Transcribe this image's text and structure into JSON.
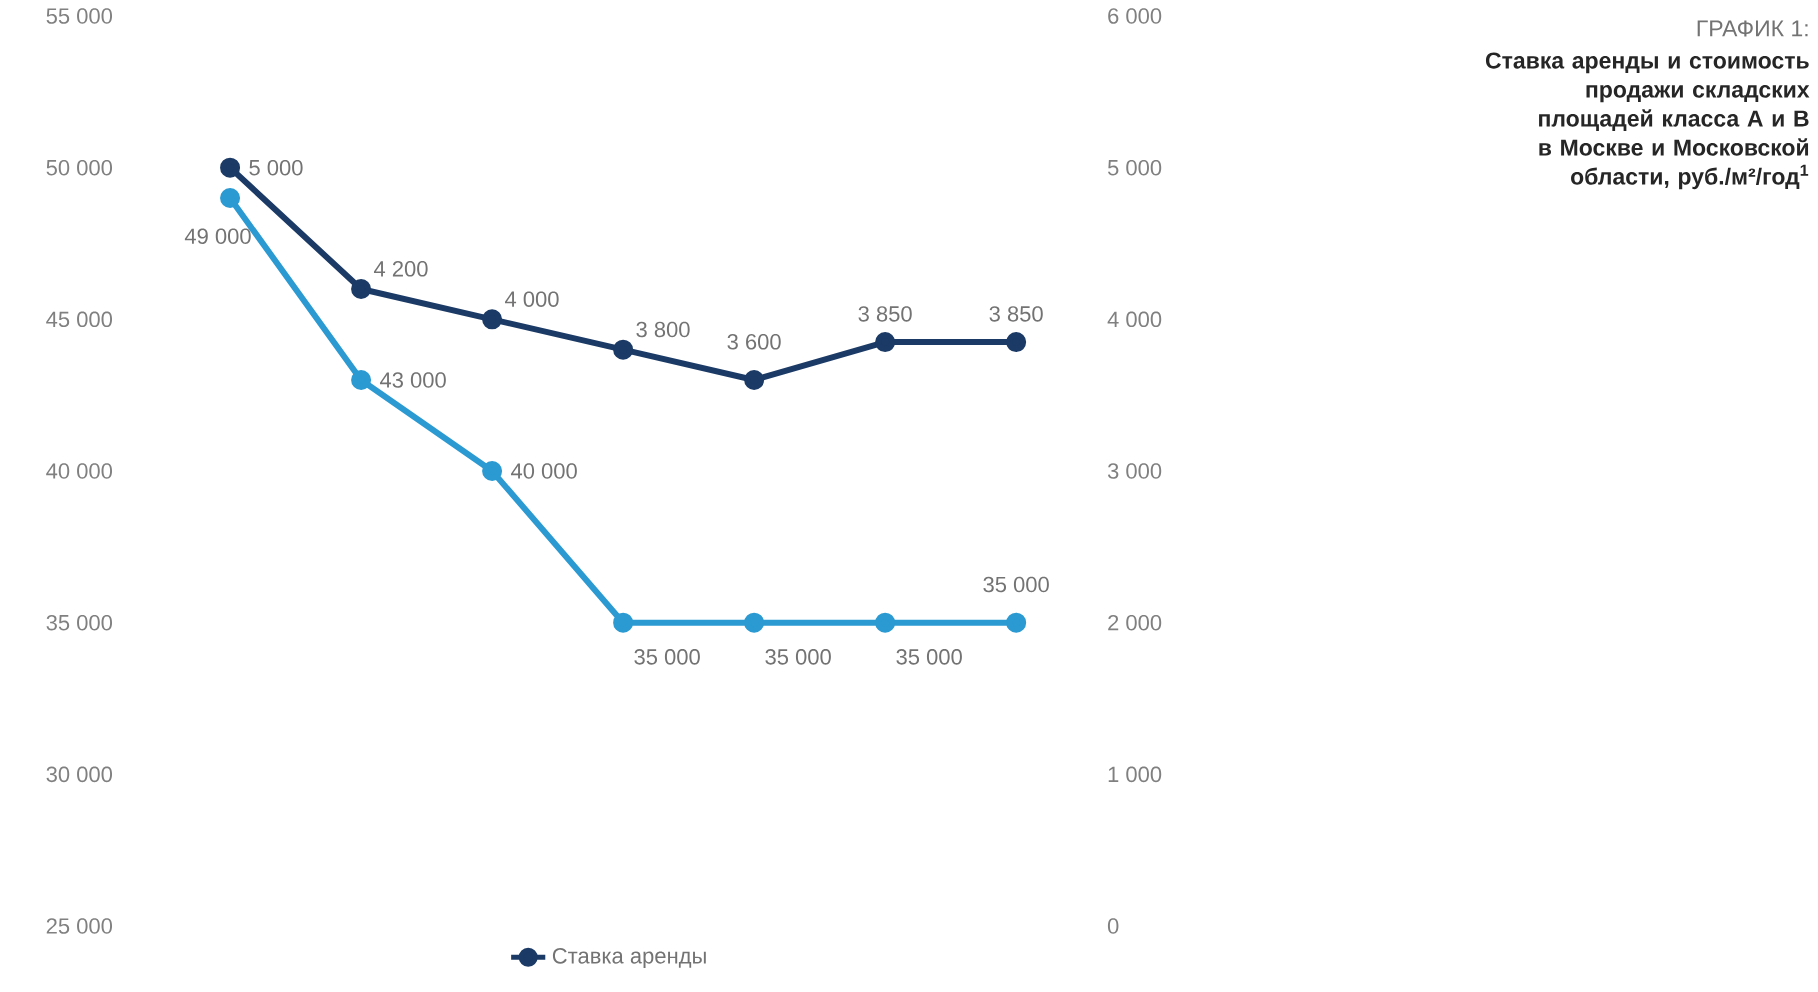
{
  "chart_data": {
    "type": "line",
    "title": "ГРАФИК 1:",
    "subtitle": "Ставка аренды и стоимость продажи складских площадей класса А и В в Москве и Московской области, руб./м²/год$^{1}$",
    "categories": [
      null,
      null,
      null,
      null,
      null,
      null,
      null
    ],
    "series": [
      {
        "name": "Ставка аренды",
        "color": "#1b3a66",
        "axis": "y2",
        "values": [
          5000,
          4200,
          4000,
          3800,
          3600,
          3850,
          3850
        ],
        "value_labels": [
          "5 000",
          "4 200",
          "4 000",
          "3 800",
          "3 600",
          "3 850",
          "3 850"
        ]
      },
      {
        "color": "#2b9ad2",
        "values": [
          49000,
          43000,
          40000,
          35000,
          35000,
          35000,
          35000
        ],
        "value_labels": [
          "49 000",
          "43 000",
          "40 000",
          "35 000",
          "35 000",
          "35 000",
          "35 000"
        ]
      }
    ],
    "ylim": [
      25000,
      55000
    ],
    "yticks": [
      {
        "value": 25000,
        "label": "25 000"
      },
      {
        "value": 30000,
        "label": "30 000"
      },
      {
        "value": 35000,
        "label": "35 000"
      },
      {
        "value": 40000,
        "label": "40 000"
      },
      {
        "value": 45000,
        "label": "45 000"
      },
      {
        "value": 50000,
        "label": "50 000"
      },
      {
        "value": 55000,
        "label": "55 000"
      }
    ],
    "y2lim": [
      0,
      6000
    ],
    "y2ticks": [
      0,
      {
        "value": 1000,
        "label": "1 000"
      },
      {
        "value": 2000,
        "label": "2 000"
      },
      {
        "value": 3000,
        "label": "3 000"
      },
      {
        "value": 4000,
        "label": "4 000"
      },
      {
        "value": 5000,
        "label": "5 000"
      },
      {
        "value": 6000,
        "label": "6 000"
      }
    ],
    "legend": "bottom",
    "marker": "circle",
    "line_style": "solid"
  }
}
